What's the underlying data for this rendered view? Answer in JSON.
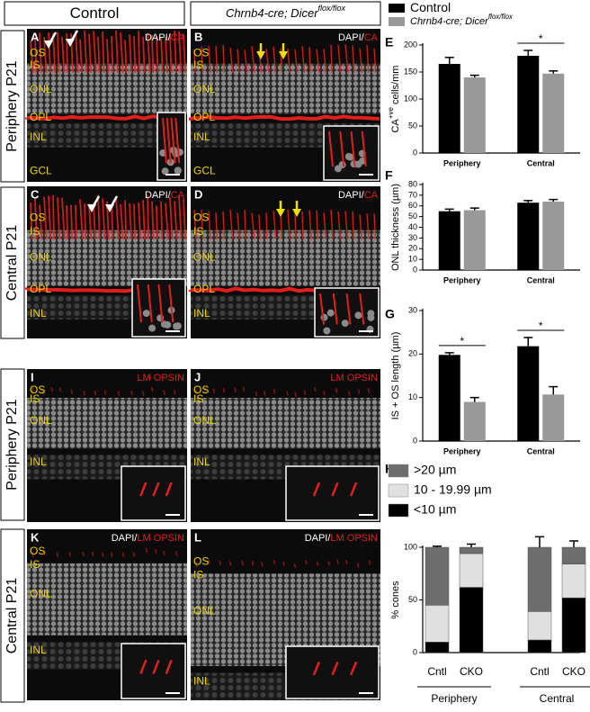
{
  "figure": {
    "column_headers": [
      {
        "text": "Control"
      },
      {
        "text": "Chrnb4-cre; Dicer",
        "sup": "flox/flox"
      }
    ],
    "row_labels": [
      "Periphery P21",
      "Central P21",
      "Periphery P21",
      "Central P21"
    ],
    "panels": [
      {
        "letter": "A",
        "stain": "DAPI/",
        "marker": "CA",
        "layers": [
          "OS",
          "IS",
          "ONL",
          "OPL",
          "INL",
          "GCL"
        ]
      },
      {
        "letter": "B",
        "stain": "DAPI/",
        "marker": "CA",
        "layers": [
          "OS",
          "IS",
          "ONL",
          "OPL",
          "INL",
          "GCL"
        ]
      },
      {
        "letter": "C",
        "stain": "DAPI/",
        "marker": "CA",
        "layers": [
          "OS",
          "IS",
          "ONL",
          "OPL",
          "INL"
        ]
      },
      {
        "letter": "D",
        "stain": "DAPI/",
        "marker": "CA",
        "layers": [
          "OS",
          "IS",
          "ONL",
          "OPL",
          "INL"
        ]
      },
      {
        "letter": "I",
        "marker": "LM OPSIN",
        "layers": [
          "OS",
          "IS",
          "ONL",
          "INL"
        ]
      },
      {
        "letter": "J",
        "marker": "LM OPSIN",
        "layers": [
          "OS",
          "IS",
          "ONL",
          "INL"
        ]
      },
      {
        "letter": "K",
        "stain": "DAPI/",
        "marker": "LM OPSIN",
        "layers": [
          "OS",
          "IS",
          "ONL",
          "INL"
        ]
      },
      {
        "letter": "L",
        "stain": "DAPI/",
        "marker": "LM OPSIN",
        "layers": [
          "OS",
          "IS",
          "ONL",
          "INL"
        ]
      }
    ]
  },
  "chart_data": [
    {
      "type": "bar",
      "letter": "E",
      "ylabel": "CA",
      "ylabel_sup": "+ve",
      "ylabel_rest": " cells/mm",
      "categories": [
        "Periphery",
        "Central"
      ],
      "series": [
        {
          "name": "Control",
          "color": "#000000",
          "values": [
            165,
            180
          ],
          "errors": [
            12,
            10
          ]
        },
        {
          "name": "Chrnb4-cre; Dicer",
          "name_sup": "flox/flox",
          "color": "#999999",
          "values": [
            140,
            147
          ],
          "errors": [
            4,
            5
          ]
        }
      ],
      "significant": [
        false,
        true
      ],
      "significance_label": "*",
      "ylim": [
        0,
        200
      ],
      "yticks": [
        0,
        50,
        100,
        150,
        200
      ]
    },
    {
      "type": "bar",
      "letter": "F",
      "ylabel": "ONL thickness (µm)",
      "categories": [
        "Periphery",
        "Central"
      ],
      "series": [
        {
          "color": "#000000",
          "values": [
            55,
            63
          ],
          "errors": [
            2,
            2
          ]
        },
        {
          "color": "#999999",
          "values": [
            56,
            64
          ],
          "errors": [
            2,
            2
          ]
        }
      ],
      "ylim": [
        0,
        80
      ],
      "yticks": [
        0,
        10,
        20,
        30,
        40,
        50,
        60,
        70,
        80
      ]
    },
    {
      "type": "bar",
      "letter": "G",
      "ylabel": "IS + OS length (µm)",
      "categories": [
        "Periphery",
        "Central"
      ],
      "series": [
        {
          "color": "#000000",
          "values": [
            19.8,
            21.8
          ],
          "errors": [
            0.5,
            2
          ]
        },
        {
          "color": "#999999",
          "values": [
            9,
            10.7
          ],
          "errors": [
            1,
            1.8
          ]
        }
      ],
      "significant": [
        true,
        true
      ],
      "significance_label": "*",
      "ylim": [
        0,
        30
      ],
      "yticks": [
        0,
        10,
        20,
        30
      ]
    },
    {
      "type": "stacked_bar",
      "letter": "H",
      "ylabel": "% cones",
      "categories": [
        "Cntl",
        "CKO",
        "Cntl",
        "CKO"
      ],
      "groups": [
        "Periphery",
        "Central"
      ],
      "group_of": [
        0,
        0,
        1,
        1
      ],
      "series": [
        {
          "name": "<10 µm",
          "color": "#000000",
          "values": [
            10,
            62,
            12,
            52
          ],
          "errors": [
            2,
            5,
            4,
            8
          ]
        },
        {
          "name": "10 - 19.99 µm",
          "color": "#e0e0e0",
          "values": [
            35,
            32,
            27,
            32
          ],
          "errors": [
            1,
            3,
            8,
            2
          ]
        },
        {
          "name": ">20 µm",
          "color": "#6d6d6d",
          "values": [
            55,
            6,
            61,
            16
          ],
          "errors": [
            1,
            3,
            10,
            6
          ]
        }
      ],
      "ylim": [
        0,
        100
      ],
      "yticks": [
        0,
        50,
        100
      ]
    }
  ]
}
